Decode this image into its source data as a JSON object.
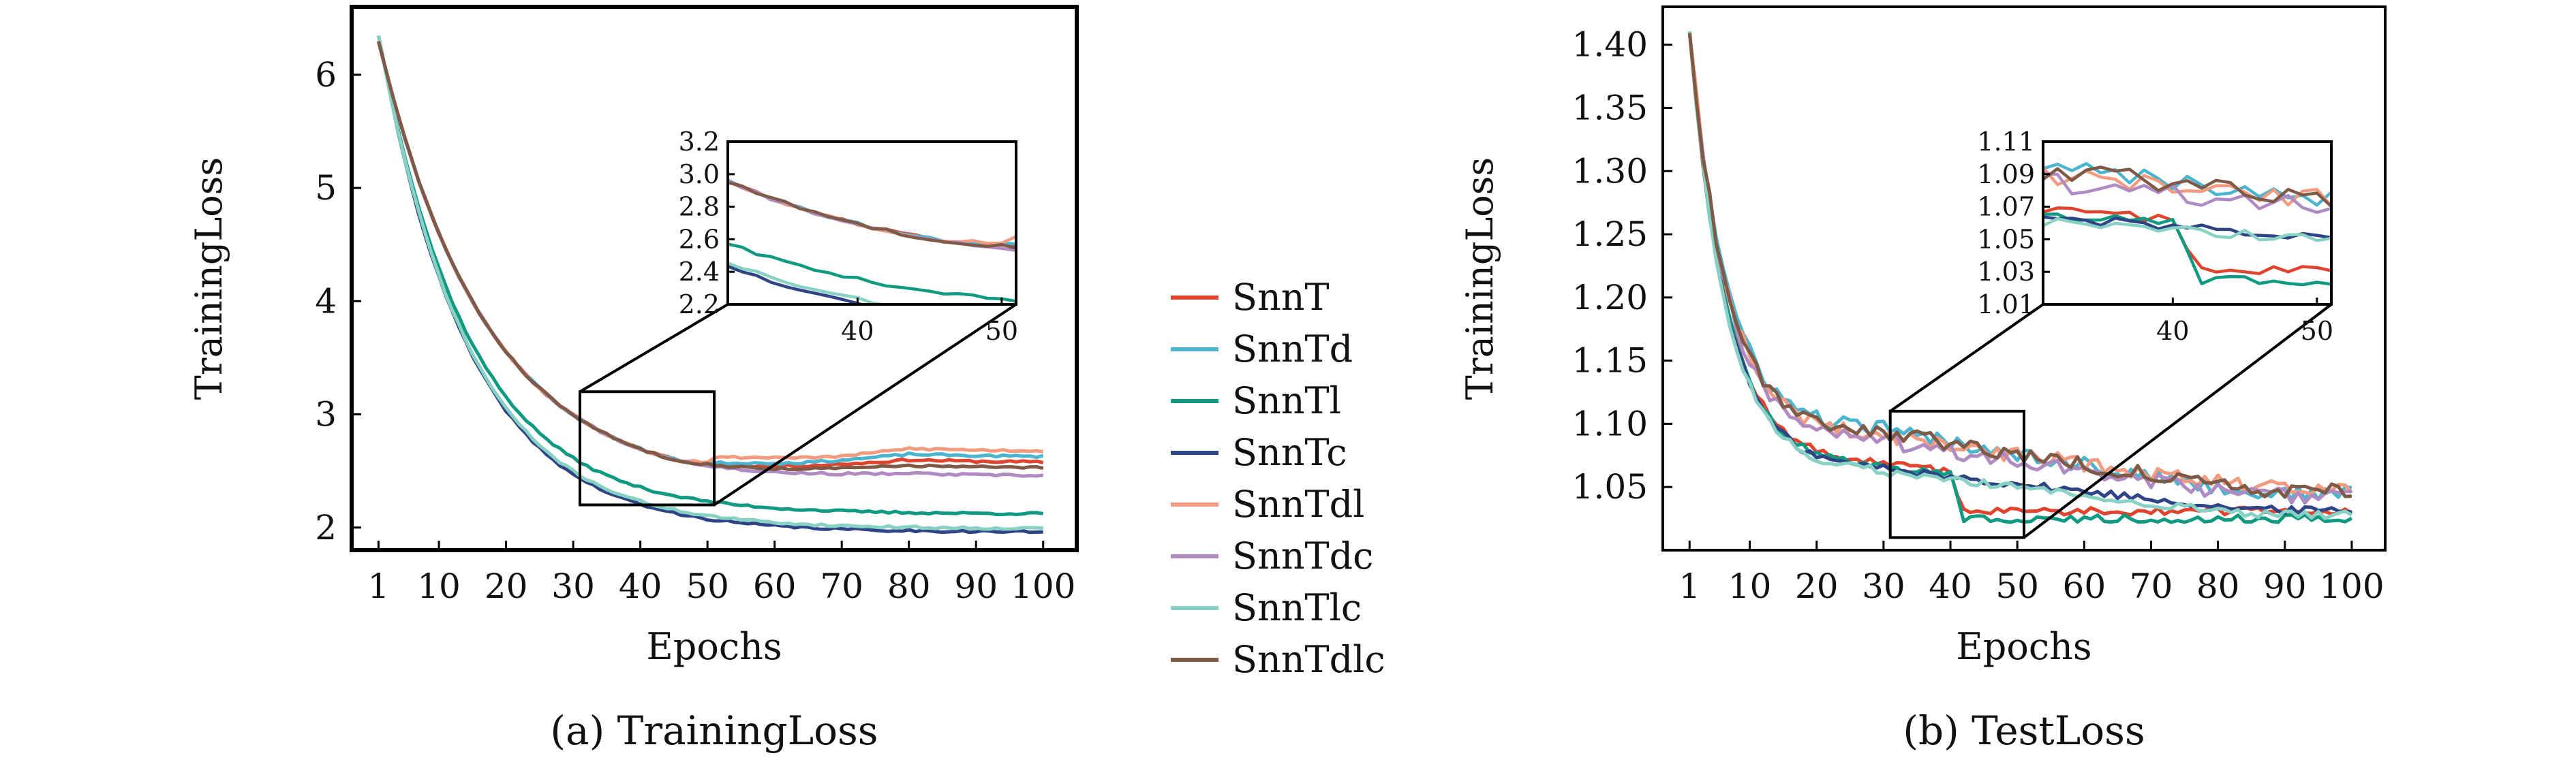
{
  "chart_data": [
    {
      "type": "line",
      "caption": "(a) TrainingLoss",
      "xlabel": "Epochs",
      "ylabel": "TrainingLoss",
      "xlim": [
        -3,
        105
      ],
      "ylim": [
        1.8,
        6.6
      ],
      "xticks": [
        1,
        10,
        20,
        30,
        40,
        50,
        60,
        70,
        80,
        90,
        100
      ],
      "xtick_labels": [
        "1",
        "10",
        "20",
        "30",
        "40",
        "50",
        "60",
        "70",
        "80",
        "90",
        "100"
      ],
      "yticks": [
        2,
        3,
        4,
        5,
        6
      ],
      "ytick_labels": [
        "2",
        "3",
        "4",
        "5",
        "6"
      ],
      "zoom_region": {
        "x": [
          31,
          51
        ],
        "y": [
          2.2,
          3.2
        ]
      },
      "inset": {
        "xlim": [
          31,
          51
        ],
        "ylim": [
          2.2,
          3.2
        ],
        "xticks": [
          40,
          50
        ],
        "xtick_labels": [
          "40",
          "50"
        ],
        "yticks": [
          2.2,
          2.4,
          2.6,
          2.8,
          3.0,
          3.2
        ],
        "ytick_labels": [
          "2.2",
          "2.4",
          "2.6",
          "2.8",
          "3.0",
          "3.2"
        ]
      },
      "series": [
        {
          "name": "SnnT",
          "color": "#e0432e",
          "kind": "high",
          "final": 2.57,
          "seed": 11
        },
        {
          "name": "SnnTd",
          "color": "#4bb5cf",
          "kind": "high",
          "final": 2.62,
          "seed": 23
        },
        {
          "name": "SnnTl",
          "color": "#109a82",
          "kind": "low",
          "final": 2.12,
          "seed": 37
        },
        {
          "name": "SnnTc",
          "color": "#2e4484",
          "kind": "low",
          "final": 1.96,
          "seed": 41
        },
        {
          "name": "SnnTdl",
          "color": "#f29b7f",
          "kind": "high",
          "final": 2.67,
          "seed": 53
        },
        {
          "name": "SnnTdc",
          "color": "#b08ac3",
          "kind": "high",
          "final": 2.45,
          "seed": 67
        },
        {
          "name": "SnnTlc",
          "color": "#87d2c5",
          "kind": "low",
          "final": 1.99,
          "seed": 71
        },
        {
          "name": "SnnTdlc",
          "color": "#7e5a47",
          "kind": "high",
          "final": 2.52,
          "seed": 83
        }
      ]
    },
    {
      "type": "line",
      "caption": "(b) TestLoss",
      "xlabel": "Epochs",
      "ylabel": "TrainingLoss",
      "xlim": [
        -3,
        105
      ],
      "ylim": [
        1.0,
        1.43
      ],
      "xticks": [
        1,
        10,
        20,
        30,
        40,
        50,
        60,
        70,
        80,
        90,
        100
      ],
      "xtick_labels": [
        "1",
        "10",
        "20",
        "30",
        "40",
        "50",
        "60",
        "70",
        "80",
        "90",
        "100"
      ],
      "yticks": [
        1.05,
        1.1,
        1.15,
        1.2,
        1.25,
        1.3,
        1.35,
        1.4
      ],
      "ytick_labels": [
        "1.05",
        "1.10",
        "1.15",
        "1.20",
        "1.25",
        "1.30",
        "1.35",
        "1.40"
      ],
      "zoom_region": {
        "x": [
          31,
          51
        ],
        "y": [
          1.01,
          1.11
        ]
      },
      "inset": {
        "xlim": [
          31,
          51
        ],
        "ylim": [
          1.01,
          1.11
        ],
        "xticks": [
          40,
          50
        ],
        "xtick_labels": [
          "40",
          "50"
        ],
        "yticks": [
          1.01,
          1.03,
          1.05,
          1.07,
          1.09,
          1.11
        ],
        "ytick_labels": [
          "1.01",
          "1.03",
          "1.05",
          "1.07",
          "1.09",
          "1.11"
        ]
      },
      "series": [
        {
          "name": "SnnT",
          "color": "#e0432e",
          "mid": 1.068,
          "drop_at": 41,
          "final": 1.031,
          "seed": 12
        },
        {
          "name": "SnnTd",
          "color": "#4bb5cf",
          "mid": 1.095,
          "drop_at": 0,
          "final": 1.045,
          "seed": 24
        },
        {
          "name": "SnnTl",
          "color": "#109a82",
          "mid": 1.066,
          "drop_at": 41,
          "final": 1.025,
          "seed": 36
        },
        {
          "name": "SnnTc",
          "color": "#2e4484",
          "mid": 1.064,
          "drop_at": 0,
          "final": 1.032,
          "seed": 48
        },
        {
          "name": "SnnTdl",
          "color": "#f29b7f",
          "mid": 1.09,
          "drop_at": 0,
          "final": 1.05,
          "seed": 52
        },
        {
          "name": "SnnTdc",
          "color": "#b08ac3",
          "mid": 1.086,
          "drop_at": 0,
          "final": 1.043,
          "seed": 64
        },
        {
          "name": "SnnTlc",
          "color": "#87d2c5",
          "mid": 1.062,
          "drop_at": 0,
          "final": 1.028,
          "seed": 76
        },
        {
          "name": "SnnTdlc",
          "color": "#7e5a47",
          "mid": 1.093,
          "drop_at": 0,
          "final": 1.047,
          "seed": 88
        }
      ]
    }
  ]
}
